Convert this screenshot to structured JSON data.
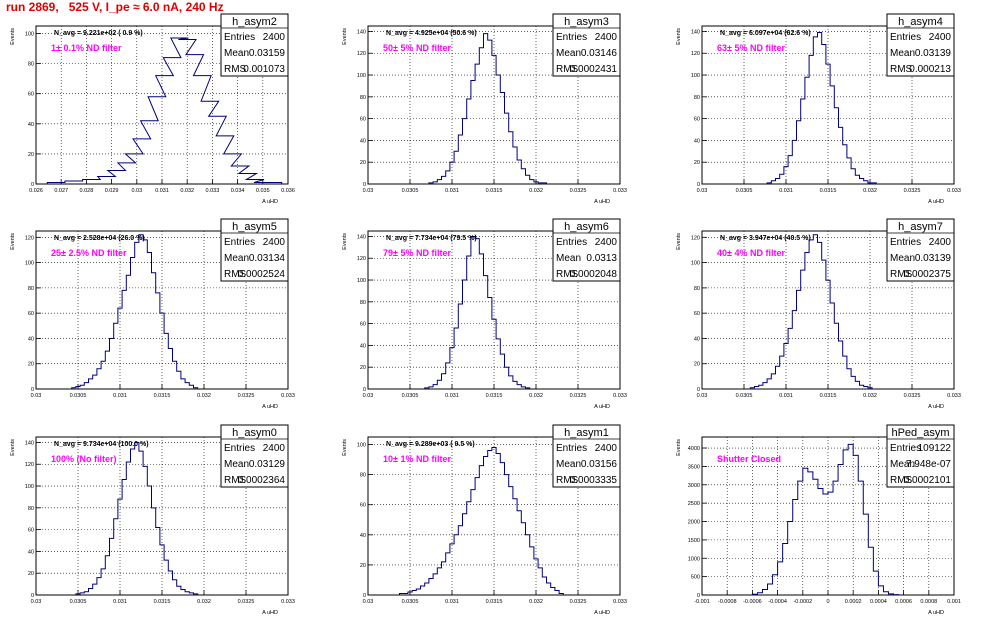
{
  "run_title": "run 2869,   525 V, I_pe ≈ 6.0 nA, 240 Hz",
  "colors": {
    "histogram": "#00007f",
    "filter_label": "#ff00ff",
    "title": "#e00000",
    "grid": "#000000"
  },
  "chart_data": [
    {
      "type": "bar",
      "title": "h_asym2",
      "xlabel": "A uHD",
      "ylabel": "Events",
      "annotation": "N_avg = 9.221e+02 ( 0.9 %)",
      "filter_label": "1± 0.1% ND filter",
      "stats": {
        "Entries": "2400",
        "Mean": "0.03159",
        "RMS": "0.001073"
      },
      "xlim": [
        0.026,
        0.036
      ],
      "ylim": [
        0,
        105
      ],
      "xticks": [
        "0.026",
        "0.027",
        "0.028",
        "0.029",
        "0.03",
        "0.031",
        "0.032",
        "0.033",
        "0.034",
        "0.035",
        "0.036"
      ],
      "yticks": [
        0,
        20,
        40,
        60,
        80,
        100
      ],
      "x": [
        0.0268,
        0.0275,
        0.0282,
        0.0288,
        0.0292,
        0.0296,
        0.0299,
        0.0302,
        0.0305,
        0.0308,
        0.0311,
        0.0314,
        0.0317,
        0.032,
        0.0323,
        0.0326,
        0.0329,
        0.0332,
        0.0335,
        0.0338,
        0.0341,
        0.0344,
        0.0347,
        0.035,
        0.0354
      ],
      "values": [
        1,
        2,
        3,
        5,
        9,
        14,
        20,
        30,
        42,
        58,
        72,
        84,
        97,
        96,
        86,
        72,
        55,
        45,
        32,
        20,
        12,
        7,
        3,
        1,
        1
      ]
    },
    {
      "type": "bar",
      "title": "h_asym3",
      "xlabel": "A uHD",
      "ylabel": "Events",
      "annotation": "N_avg = 4.925e+04 (50.6 %)",
      "filter_label": "50± 5% ND filter",
      "stats": {
        "Entries": "2400",
        "Mean": "0.03146",
        "RMS": "0.0002431"
      },
      "xlim": [
        0.03,
        0.033
      ],
      "ylim": [
        0,
        145
      ],
      "xticks": [
        "0.03",
        "0.0305",
        "0.031",
        "0.0315",
        "0.032",
        "0.0325",
        "0.033"
      ],
      "yticks": [
        0,
        20,
        40,
        60,
        80,
        100,
        120,
        140
      ],
      "x": [
        0.03075,
        0.0308,
        0.03085,
        0.0309,
        0.03095,
        0.031,
        0.03105,
        0.0311,
        0.03115,
        0.0312,
        0.03125,
        0.0313,
        0.03135,
        0.0314,
        0.03145,
        0.0315,
        0.03155,
        0.0316,
        0.03165,
        0.0317,
        0.03175,
        0.0318,
        0.03185,
        0.0319,
        0.03195,
        0.032,
        0.03205,
        0.0321
      ],
      "values": [
        1,
        2,
        4,
        7,
        12,
        20,
        30,
        45,
        60,
        78,
        95,
        110,
        125,
        138,
        132,
        118,
        100,
        84,
        65,
        48,
        34,
        22,
        14,
        8,
        4,
        2,
        1,
        1
      ]
    },
    {
      "type": "bar",
      "title": "h_asym4",
      "xlabel": "A uHD",
      "ylabel": "Events",
      "annotation": "N_avg = 6.097e+04 (62.6 %)",
      "filter_label": "63± 5% ND filter",
      "stats": {
        "Entries": "2400",
        "Mean": "0.03139",
        "RMS": "0.000213"
      },
      "xlim": [
        0.03,
        0.033
      ],
      "ylim": [
        0,
        145
      ],
      "xticks": [
        "0.03",
        "0.0305",
        "0.031",
        "0.0315",
        "0.032",
        "0.0325",
        "0.033"
      ],
      "yticks": [
        0,
        20,
        40,
        60,
        80,
        100,
        120,
        140
      ],
      "x": [
        0.0308,
        0.03085,
        0.0309,
        0.03095,
        0.031,
        0.03105,
        0.0311,
        0.03115,
        0.0312,
        0.03125,
        0.0313,
        0.03135,
        0.0314,
        0.03145,
        0.0315,
        0.03155,
        0.0316,
        0.03165,
        0.0317,
        0.03175,
        0.0318,
        0.03185,
        0.0319,
        0.03195,
        0.032,
        0.03205
      ],
      "values": [
        1,
        3,
        5,
        9,
        16,
        26,
        40,
        58,
        78,
        98,
        118,
        135,
        139,
        128,
        110,
        90,
        70,
        52,
        36,
        24,
        14,
        8,
        5,
        3,
        1,
        1
      ]
    },
    {
      "type": "bar",
      "title": "h_asym5",
      "xlabel": "A uHD",
      "ylabel": "Events",
      "annotation": "N_avg = 2.528e+04 (26.0 %)",
      "filter_label": "25± 2.5% ND filter",
      "stats": {
        "Entries": "2400",
        "Mean": "0.03134",
        "RMS": "0.0002524"
      },
      "xlim": [
        0.03,
        0.033
      ],
      "ylim": [
        0,
        125
      ],
      "xticks": [
        "0.03",
        "0.0305",
        "0.031",
        "0.0315",
        "0.032",
        "0.0325",
        "0.033"
      ],
      "yticks": [
        0,
        20,
        40,
        60,
        80,
        100,
        120
      ],
      "x": [
        0.03045,
        0.0305,
        0.03055,
        0.0306,
        0.03065,
        0.0307,
        0.03075,
        0.0308,
        0.03085,
        0.0309,
        0.03095,
        0.031,
        0.03105,
        0.0311,
        0.03115,
        0.0312,
        0.03125,
        0.0313,
        0.03135,
        0.0314,
        0.03145,
        0.0315,
        0.03155,
        0.0316,
        0.03165,
        0.0317,
        0.03175,
        0.0318,
        0.03185,
        0.0319
      ],
      "values": [
        1,
        2,
        3,
        5,
        8,
        11,
        16,
        22,
        30,
        40,
        52,
        64,
        78,
        90,
        104,
        116,
        122,
        118,
        108,
        92,
        76,
        60,
        44,
        32,
        22,
        14,
        8,
        5,
        3,
        1
      ]
    },
    {
      "type": "bar",
      "title": "h_asym6",
      "xlabel": "A uHD",
      "ylabel": "Events",
      "annotation": "N_avg = 7.734e+04 (79.5 %)",
      "filter_label": "79± 5% ND filter",
      "stats": {
        "Entries": "2400",
        "Mean": "0.0313",
        "RMS": "0.0002048"
      },
      "xlim": [
        0.03,
        0.033
      ],
      "ylim": [
        0,
        145
      ],
      "xticks": [
        "0.03",
        "0.0305",
        "0.031",
        "0.0315",
        "0.032",
        "0.0325",
        "0.033"
      ],
      "yticks": [
        0,
        20,
        40,
        60,
        80,
        100,
        120,
        140
      ],
      "x": [
        0.0307,
        0.03075,
        0.0308,
        0.03085,
        0.0309,
        0.03095,
        0.031,
        0.03105,
        0.0311,
        0.03115,
        0.0312,
        0.03125,
        0.0313,
        0.03135,
        0.0314,
        0.03145,
        0.0315,
        0.03155,
        0.0316,
        0.03165,
        0.0317,
        0.03175,
        0.0318,
        0.03185,
        0.0319
      ],
      "values": [
        1,
        2,
        4,
        8,
        14,
        24,
        38,
        56,
        78,
        100,
        122,
        140,
        138,
        124,
        104,
        84,
        64,
        46,
        32,
        20,
        12,
        7,
        4,
        2,
        1
      ]
    },
    {
      "type": "bar",
      "title": "h_asym7",
      "xlabel": "A uHD",
      "ylabel": "Events",
      "annotation": "N_avg = 3.947e+04 (40.5 %)",
      "filter_label": "40± 4% ND filter",
      "stats": {
        "Entries": "2400",
        "Mean": "0.03139",
        "RMS": "0.0002375"
      },
      "xlim": [
        0.03,
        0.033
      ],
      "ylim": [
        0,
        125
      ],
      "xticks": [
        "0.03",
        "0.0305",
        "0.031",
        "0.0315",
        "0.032",
        "0.0325",
        "0.033"
      ],
      "yticks": [
        0,
        20,
        40,
        60,
        80,
        100,
        120
      ],
      "x": [
        0.0306,
        0.03065,
        0.0307,
        0.03075,
        0.0308,
        0.03085,
        0.0309,
        0.03095,
        0.031,
        0.03105,
        0.0311,
        0.03115,
        0.0312,
        0.03125,
        0.0313,
        0.03135,
        0.0314,
        0.03145,
        0.0315,
        0.03155,
        0.0316,
        0.03165,
        0.0317,
        0.03175,
        0.0318,
        0.03185,
        0.0319,
        0.03195,
        0.032
      ],
      "values": [
        1,
        2,
        3,
        5,
        8,
        12,
        18,
        26,
        36,
        48,
        62,
        78,
        94,
        108,
        118,
        122,
        116,
        102,
        86,
        68,
        52,
        38,
        26,
        16,
        10,
        6,
        3,
        2,
        1
      ]
    },
    {
      "type": "bar",
      "title": "h_asym0",
      "xlabel": "A uHD",
      "ylabel": "Events",
      "annotation": "N_avg = 9.734e+04 (100.0 %)",
      "filter_label": "100% (No filter)",
      "stats": {
        "Entries": "2400",
        "Mean": "0.03129",
        "RMS": "0.0002364"
      },
      "xlim": [
        0.03,
        0.033
      ],
      "ylim": [
        0,
        145
      ],
      "xticks": [
        "0.03",
        "0.0305",
        "0.031",
        "0.0315",
        "0.032",
        "0.0325",
        "0.033"
      ],
      "yticks": [
        0,
        20,
        40,
        60,
        80,
        100,
        120,
        140
      ],
      "x": [
        0.0305,
        0.03055,
        0.0306,
        0.03065,
        0.0307,
        0.03075,
        0.0308,
        0.03085,
        0.0309,
        0.03095,
        0.031,
        0.03105,
        0.0311,
        0.03115,
        0.0312,
        0.03125,
        0.0313,
        0.03135,
        0.0314,
        0.03145,
        0.0315,
        0.03155,
        0.0316,
        0.03165,
        0.0317,
        0.03175,
        0.0318,
        0.03185,
        0.0319
      ],
      "values": [
        1,
        2,
        3,
        6,
        10,
        16,
        24,
        36,
        52,
        70,
        88,
        106,
        122,
        134,
        140,
        132,
        118,
        100,
        80,
        62,
        46,
        32,
        22,
        14,
        8,
        5,
        3,
        2,
        1
      ]
    },
    {
      "type": "bar",
      "title": "h_asym1",
      "xlabel": "A uHD",
      "ylabel": "Events",
      "annotation": "N_avg = 9.289e+03 ( 9.5 %)",
      "filter_label": "10± 1% ND filter",
      "stats": {
        "Entries": "2400",
        "Mean": "0.03156",
        "RMS": "0.0003335"
      },
      "xlim": [
        0.03,
        0.033
      ],
      "ylim": [
        0,
        105
      ],
      "xticks": [
        "0.03",
        "0.0305",
        "0.031",
        "0.0315",
        "0.032",
        "0.0325",
        "0.033"
      ],
      "yticks": [
        0,
        20,
        40,
        60,
        80,
        100
      ],
      "x": [
        0.0304,
        0.03045,
        0.0305,
        0.03055,
        0.0306,
        0.03065,
        0.0307,
        0.03075,
        0.0308,
        0.03085,
        0.0309,
        0.03095,
        0.031,
        0.03105,
        0.0311,
        0.03115,
        0.0312,
        0.03125,
        0.0313,
        0.03135,
        0.0314,
        0.03145,
        0.0315,
        0.03155,
        0.0316,
        0.03165,
        0.0317,
        0.03175,
        0.0318,
        0.03185,
        0.0319,
        0.03195,
        0.032,
        0.03205,
        0.0321,
        0.03215,
        0.0322,
        0.03225,
        0.0323
      ],
      "values": [
        1,
        1,
        2,
        3,
        4,
        6,
        8,
        11,
        14,
        18,
        22,
        28,
        34,
        40,
        46,
        54,
        62,
        70,
        78,
        86,
        92,
        96,
        98,
        94,
        88,
        80,
        72,
        64,
        56,
        48,
        40,
        32,
        24,
        18,
        12,
        8,
        5,
        3,
        1
      ]
    },
    {
      "type": "bar",
      "title": "hPed_asym",
      "xlabel": "A uHD",
      "ylabel": "Events",
      "annotation": "",
      "filter_label": "Shutter Closed",
      "stats": {
        "Entries": "109122",
        "Mean": "7.948e-07",
        "RMS": "0.0002101"
      },
      "xlim": [
        -0.001,
        0.001
      ],
      "ylim": [
        0,
        4300
      ],
      "xticks": [
        "-0.001",
        "-0.0008",
        "-0.0006",
        "-0.0004",
        "-0.0002",
        "0",
        "0.0002",
        "0.0004",
        "0.0006",
        "0.0008",
        "0.001"
      ],
      "yticks": [
        0,
        500,
        1000,
        1500,
        2000,
        2500,
        3000,
        3500,
        4000
      ],
      "x": [
        -0.00058,
        -0.00054,
        -0.0005,
        -0.00046,
        -0.00042,
        -0.00038,
        -0.00034,
        -0.0003,
        -0.00026,
        -0.00022,
        -0.00018,
        -0.00014,
        -0.0001,
        -6e-05,
        -2e-05,
        2e-05,
        6e-05,
        0.0001,
        0.00014,
        0.00018,
        0.00022,
        0.00026,
        0.0003,
        0.00034,
        0.00038,
        0.00042,
        0.00046,
        0.0005,
        0.00054
      ],
      "values": [
        20,
        60,
        150,
        300,
        550,
        900,
        1400,
        2000,
        2600,
        3100,
        3450,
        3350,
        3150,
        2900,
        2750,
        2800,
        3100,
        3550,
        3950,
        4100,
        3800,
        3100,
        2200,
        1300,
        650,
        250,
        90,
        30,
        10
      ]
    }
  ]
}
